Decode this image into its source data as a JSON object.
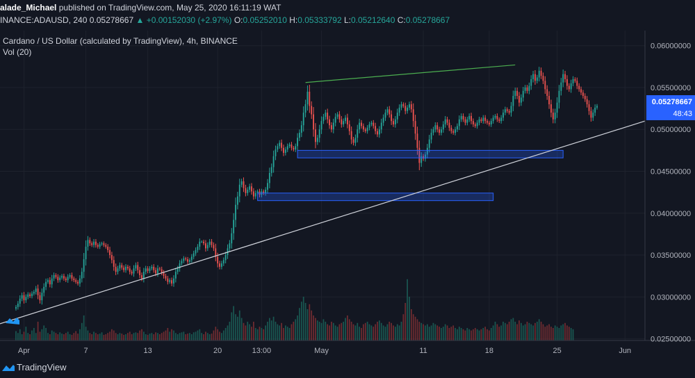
{
  "header": {
    "publisher": "alade_Michael",
    "published_text": "published on TradingView.com, May 25, 2020 16:11:19 WAT",
    "symbol": "INANCE:ADAUSD, 240",
    "last": "0.05278667",
    "change": "+0.00152030 (+2.97%)",
    "open_label": "O:",
    "open": "0.05252010",
    "high_label": "H:",
    "high": "0.05333792",
    "low_label": "L:",
    "low": "0.05212640",
    "close_label": "C:",
    "close": "0.05278667"
  },
  "legend": {
    "title": "Cardano / US Dollar (calculated by TradingView), 4h, BINANCE",
    "volume": "Vol (20)"
  },
  "price_tag": {
    "value": "0.05278667",
    "countdown": "48:43"
  },
  "footer": {
    "brand": "TradingView"
  },
  "colors": {
    "up": "#26a69a",
    "down": "#ef5350",
    "background": "#131722",
    "zone": "#2962ff",
    "trendline": "#d1d4dc",
    "resistance": "#4caf50",
    "price_tag": "#2962ff"
  },
  "chart_data": {
    "type": "candlestick",
    "title": "Cardano / US Dollar (calculated by TradingView), 4h, BINANCE",
    "y_ticks": [
      "0.06000000",
      "0.05500000",
      "0.05000000",
      "0.04500000",
      "0.04000000",
      "0.03500000",
      "0.03000000",
      "0.02500000"
    ],
    "ylim": [
      0.0248,
      0.0618
    ],
    "x_ticks": [
      {
        "label": "Apr",
        "t": 4
      },
      {
        "label": "7",
        "t": 35
      },
      {
        "label": "13",
        "t": 66
      },
      {
        "label": "20",
        "t": 101
      },
      {
        "label": "13:00",
        "t": 123
      },
      {
        "label": "May",
        "t": 153
      },
      {
        "label": "11",
        "t": 204
      },
      {
        "label": "18",
        "t": 237
      },
      {
        "label": "25",
        "t": 271
      },
      {
        "label": "Jun",
        "t": 305
      }
    ],
    "xlim": [
      -8,
      315
    ],
    "close_series": [
      0.0288,
      0.0292,
      0.0298,
      0.0302,
      0.0296,
      0.03,
      0.0303,
      0.0301,
      0.0304,
      0.0306,
      0.031,
      0.0302,
      0.0296,
      0.0305,
      0.0312,
      0.0318,
      0.032,
      0.0315,
      0.0322,
      0.0326,
      0.0324,
      0.032,
      0.0323,
      0.0325,
      0.0322,
      0.032,
      0.0324,
      0.0326,
      0.0322,
      0.032,
      0.0318,
      0.0316,
      0.0322,
      0.033,
      0.0345,
      0.036,
      0.0368,
      0.0364,
      0.0362,
      0.0366,
      0.0362,
      0.036,
      0.0363,
      0.0364,
      0.0362,
      0.036,
      0.0356,
      0.035,
      0.0344,
      0.0336,
      0.033,
      0.0334,
      0.0338,
      0.0335,
      0.0332,
      0.0336,
      0.0334,
      0.033,
      0.0328,
      0.0334,
      0.0338,
      0.0332,
      0.0326,
      0.0322,
      0.033,
      0.0334,
      0.0331,
      0.0334,
      0.0336,
      0.0332,
      0.0328,
      0.0334,
      0.0333,
      0.0329,
      0.0325,
      0.0322,
      0.0318,
      0.032,
      0.0316,
      0.0322,
      0.033,
      0.0334,
      0.034,
      0.0343,
      0.0346,
      0.0345,
      0.0342,
      0.0344,
      0.0348,
      0.0352,
      0.0356,
      0.036,
      0.0366,
      0.0366,
      0.0364,
      0.0358,
      0.0362,
      0.0366,
      0.0362,
      0.0358,
      0.0348,
      0.034,
      0.0336,
      0.034,
      0.0344,
      0.035,
      0.0358,
      0.0364,
      0.0376,
      0.0392,
      0.041,
      0.042,
      0.0434,
      0.0438,
      0.043,
      0.0424,
      0.0428,
      0.0432,
      0.0426,
      0.042,
      0.0424,
      0.0426,
      0.0422,
      0.0426,
      0.0424,
      0.0428,
      0.0436,
      0.0448,
      0.0455,
      0.0468,
      0.0476,
      0.048,
      0.0484,
      0.0478,
      0.0472,
      0.0476,
      0.048,
      0.0482,
      0.0478,
      0.0476,
      0.048,
      0.049,
      0.0496,
      0.0505,
      0.052,
      0.053,
      0.0545,
      0.0528,
      0.0518,
      0.05,
      0.0485,
      0.049,
      0.05,
      0.051,
      0.0515,
      0.052,
      0.0512,
      0.0505,
      0.05,
      0.0508,
      0.0515,
      0.0518,
      0.0512,
      0.0506,
      0.051,
      0.0514,
      0.0506,
      0.0498,
      0.0488,
      0.0484,
      0.049,
      0.05,
      0.0508,
      0.0504,
      0.05,
      0.0498,
      0.0502,
      0.0506,
      0.0508,
      0.0504,
      0.0498,
      0.0494,
      0.05,
      0.0508,
      0.0514,
      0.052,
      0.0524,
      0.0518,
      0.051,
      0.0506,
      0.0512,
      0.052,
      0.0526,
      0.053,
      0.0528,
      0.0522,
      0.0526,
      0.053,
      0.0524,
      0.051,
      0.0495,
      0.0478,
      0.046,
      0.0468,
      0.0465,
      0.047,
      0.0478,
      0.0488,
      0.0496,
      0.05,
      0.0505,
      0.05,
      0.0496,
      0.05,
      0.0506,
      0.0512,
      0.0508,
      0.0502,
      0.0498,
      0.0496,
      0.05,
      0.0504,
      0.0512,
      0.0516,
      0.0512,
      0.0508,
      0.0512,
      0.0516,
      0.051,
      0.0506,
      0.0504,
      0.0508,
      0.0512,
      0.051,
      0.0514,
      0.051,
      0.0508,
      0.0506,
      0.051,
      0.0514,
      0.0516,
      0.0512,
      0.051,
      0.0514,
      0.052,
      0.0524,
      0.0522,
      0.052,
      0.0528,
      0.054,
      0.0546,
      0.054,
      0.0532,
      0.0538,
      0.0546,
      0.055,
      0.0546,
      0.0552,
      0.056,
      0.0566,
      0.0558,
      0.0562,
      0.057,
      0.0564,
      0.0558,
      0.0548,
      0.054,
      0.053,
      0.052,
      0.0512,
      0.052,
      0.0532,
      0.0546,
      0.0556,
      0.0566,
      0.056,
      0.0552,
      0.0548,
      0.0555,
      0.056,
      0.0558,
      0.0552,
      0.0548,
      0.0544,
      0.054,
      0.0536,
      0.053,
      0.0522,
      0.0514,
      0.052,
      0.0526,
      0.0528
    ],
    "volume_scale_max": 1.0,
    "volume_series": [
      0.15,
      0.12,
      0.18,
      0.1,
      0.14,
      0.22,
      0.12,
      0.1,
      0.16,
      0.2,
      0.12,
      0.3,
      0.14,
      0.18,
      0.24,
      0.2,
      0.12,
      0.1,
      0.16,
      0.14,
      0.12,
      0.1,
      0.13,
      0.11,
      0.1,
      0.12,
      0.14,
      0.1,
      0.09,
      0.12,
      0.15,
      0.11,
      0.18,
      0.28,
      0.4,
      0.22,
      0.16,
      0.12,
      0.1,
      0.14,
      0.12,
      0.1,
      0.11,
      0.13,
      0.09,
      0.1,
      0.12,
      0.14,
      0.18,
      0.16,
      0.12,
      0.1,
      0.12,
      0.11,
      0.09,
      0.1,
      0.12,
      0.14,
      0.1,
      0.12,
      0.13,
      0.12,
      0.16,
      0.18,
      0.14,
      0.1,
      0.09,
      0.11,
      0.12,
      0.1,
      0.13,
      0.12,
      0.1,
      0.12,
      0.14,
      0.16,
      0.2,
      0.14,
      0.18,
      0.16,
      0.12,
      0.1,
      0.12,
      0.13,
      0.14,
      0.1,
      0.11,
      0.12,
      0.1,
      0.13,
      0.14,
      0.16,
      0.18,
      0.12,
      0.1,
      0.14,
      0.12,
      0.1,
      0.11,
      0.16,
      0.22,
      0.18,
      0.14,
      0.12,
      0.16,
      0.2,
      0.24,
      0.3,
      0.45,
      0.55,
      0.42,
      0.38,
      0.48,
      0.36,
      0.28,
      0.24,
      0.3,
      0.26,
      0.22,
      0.3,
      0.2,
      0.18,
      0.22,
      0.2,
      0.18,
      0.24,
      0.3,
      0.36,
      0.32,
      0.38,
      0.3,
      0.26,
      0.24,
      0.28,
      0.2,
      0.24,
      0.22,
      0.2,
      0.26,
      0.3,
      0.34,
      0.4,
      0.52,
      0.62,
      0.7,
      0.6,
      0.5,
      0.58,
      0.48,
      0.4,
      0.36,
      0.32,
      0.3,
      0.28,
      0.34,
      0.3,
      0.26,
      0.24,
      0.3,
      0.28,
      0.24,
      0.22,
      0.26,
      0.28,
      0.3,
      0.36,
      0.4,
      0.34,
      0.3,
      0.26,
      0.24,
      0.28,
      0.22,
      0.2,
      0.26,
      0.28,
      0.3,
      0.26,
      0.24,
      0.22,
      0.26,
      0.3,
      0.32,
      0.28,
      0.24,
      0.22,
      0.26,
      0.3,
      0.28,
      0.24,
      0.22,
      0.26,
      0.24,
      0.3,
      0.42,
      0.6,
      0.98,
      0.7,
      0.5,
      0.42,
      0.38,
      0.34,
      0.3,
      0.28,
      0.26,
      0.24,
      0.26,
      0.22,
      0.24,
      0.28,
      0.26,
      0.24,
      0.22,
      0.2,
      0.22,
      0.26,
      0.24,
      0.2,
      0.22,
      0.24,
      0.2,
      0.18,
      0.22,
      0.2,
      0.18,
      0.16,
      0.2,
      0.18,
      0.16,
      0.18,
      0.2,
      0.18,
      0.16,
      0.18,
      0.2,
      0.22,
      0.18,
      0.16,
      0.2,
      0.24,
      0.3,
      0.26,
      0.22,
      0.24,
      0.3,
      0.28,
      0.26,
      0.3,
      0.34,
      0.36,
      0.3,
      0.26,
      0.32,
      0.28,
      0.24,
      0.26,
      0.3,
      0.28,
      0.26,
      0.24,
      0.28,
      0.3,
      0.34,
      0.3,
      0.26,
      0.22,
      0.24,
      0.26,
      0.22,
      0.2,
      0.24,
      0.22,
      0.2,
      0.24,
      0.26,
      0.28,
      0.24,
      0.22,
      0.2,
      0.18
    ],
    "resistance_line": {
      "t1": 145,
      "p1": 0.0556,
      "t2": 250,
      "p2": 0.0577
    },
    "trend_line": {
      "t1": -8,
      "p1": 0.0268,
      "t2": 315,
      "p2": 0.051
    },
    "zones": [
      {
        "t1": 141,
        "t2": 274,
        "low": 0.0466,
        "high": 0.0475
      },
      {
        "t1": 121,
        "t2": 239,
        "low": 0.0415,
        "high": 0.0424
      }
    ],
    "last_price": 0.05278667,
    "grid": true
  }
}
